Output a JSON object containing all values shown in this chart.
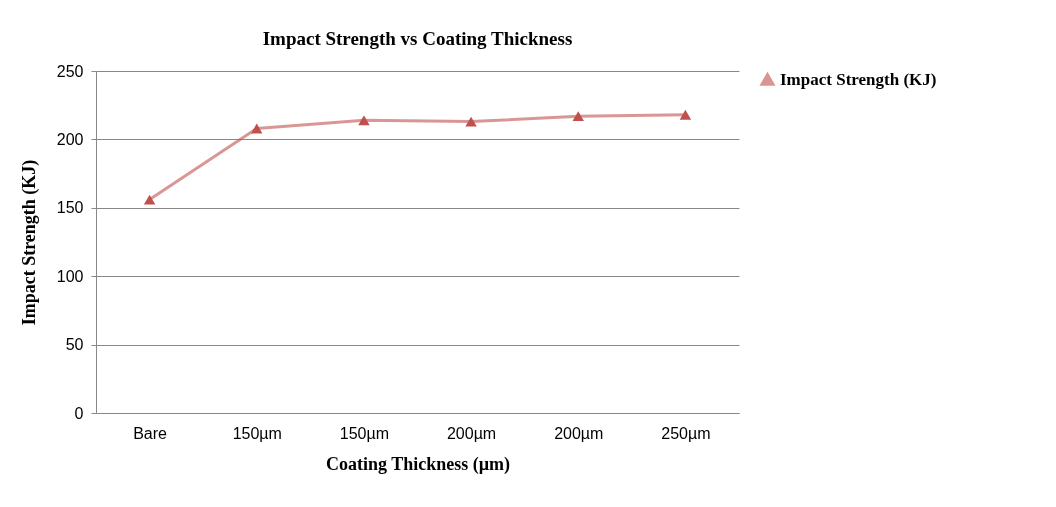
{
  "chart_data": {
    "type": "line",
    "title": "Impact Strength vs Coating Thickness",
    "xlabel": "Coating Thickness (µm)",
    "ylabel": "Impact Strength (KJ)",
    "categories": [
      "Bare",
      "150µm",
      "150µm",
      "200µm",
      "200µm",
      "250µm"
    ],
    "series": [
      {
        "name": "Impact Strength (KJ)",
        "color": "#c0504d",
        "values": [
          156,
          208,
          214,
          213,
          217,
          218
        ]
      }
    ],
    "ylim": [
      0,
      250
    ],
    "yticks": [
      0,
      50,
      100,
      150,
      200,
      250
    ],
    "grid": "y",
    "legend": "right",
    "marker": "triangle",
    "line_style": "solid"
  }
}
